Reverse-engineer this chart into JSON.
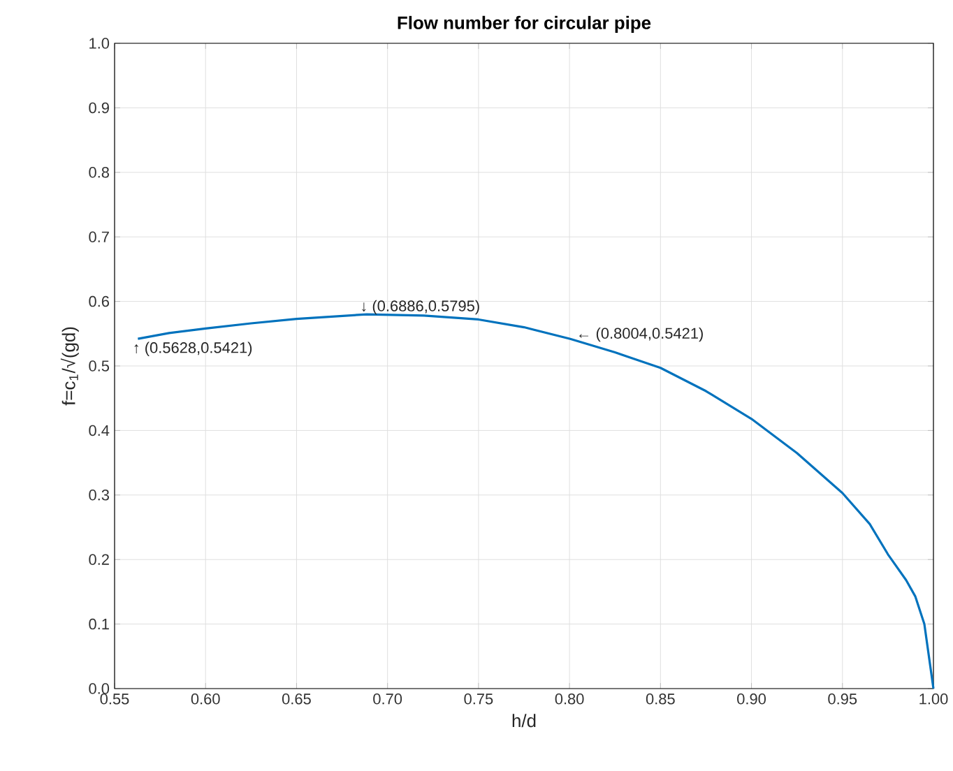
{
  "chart_data": {
    "type": "line",
    "title": "Flow number for circular pipe",
    "xlabel": "h/d",
    "ylabel": "f=c$_{1}$/√(gd)",
    "series": [
      {
        "color": "#0072bd",
        "x": [
          0.5628,
          0.58,
          0.6,
          0.625,
          0.65,
          0.6886,
          0.72,
          0.75,
          0.775,
          0.8004,
          0.825,
          0.85,
          0.875,
          0.9,
          0.925,
          0.95,
          0.965,
          0.975,
          0.985,
          0.99,
          0.995,
          1.0
        ],
        "values": [
          0.542,
          0.551,
          0.558,
          0.566,
          0.573,
          0.58,
          0.578,
          0.572,
          0.56,
          0.542,
          0.521,
          0.497,
          0.461,
          0.418,
          0.365,
          0.303,
          0.255,
          0.208,
          0.168,
          0.143,
          0.1,
          0.0
        ]
      }
    ],
    "annotations": [
      {
        "text": "↑ (0.5628,0.5421)",
        "x": 0.5628,
        "y": 0.5421
      },
      {
        "text": "↓ (0.6886,0.5795)",
        "x": 0.6886,
        "y": 0.5795
      },
      {
        "text": "← (0.8004,0.5421)",
        "x": 0.8004,
        "y": 0.5421
      }
    ],
    "xlim": [
      0.55,
      1.0
    ],
    "ylim": [
      0,
      1.0
    ],
    "xticks": [
      {
        "value": 0.55,
        "label": "0.55"
      },
      {
        "value": 0.6,
        "label": "0.60"
      },
      {
        "value": 0.65,
        "label": "0.65"
      },
      {
        "value": 0.7,
        "label": "0.70"
      },
      {
        "value": 0.75,
        "label": "0.75"
      },
      {
        "value": 0.8,
        "label": "0.80"
      },
      {
        "value": 0.85,
        "label": "0.85"
      },
      {
        "value": 0.9,
        "label": "0.90"
      },
      {
        "value": 0.95,
        "label": "0.95"
      },
      {
        "value": 1.0,
        "label": "1.00"
      }
    ],
    "yticks": [
      {
        "value": 0,
        "label": "0.0"
      },
      {
        "value": 0.1,
        "label": "0.1"
      },
      {
        "value": 0.2,
        "label": "0.2"
      },
      {
        "value": 0.3,
        "label": "0.3"
      },
      {
        "value": 0.4,
        "label": "0.4"
      },
      {
        "value": 0.5,
        "label": "0.5"
      },
      {
        "value": 0.6,
        "label": "0.6"
      },
      {
        "value": 0.7,
        "label": "0.7"
      },
      {
        "value": 0.8,
        "label": "0.8"
      },
      {
        "value": 0.9,
        "label": "0.9"
      },
      {
        "value": 1.0,
        "label": "1.0"
      }
    ],
    "grid": true
  }
}
